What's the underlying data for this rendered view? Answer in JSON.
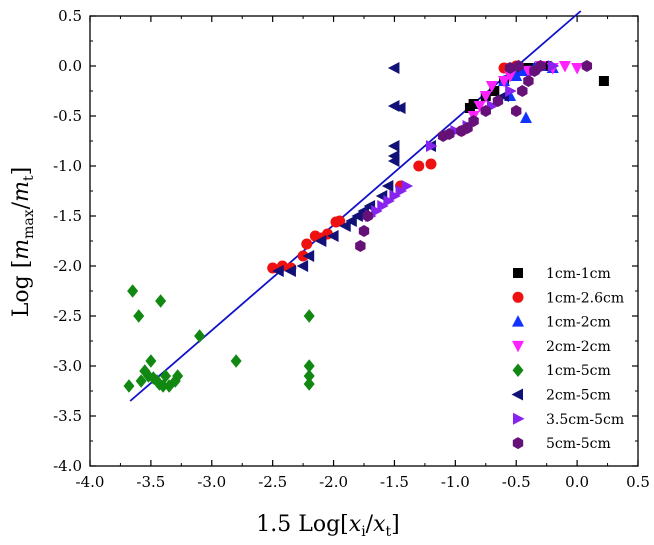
{
  "chart_data": {
    "type": "scatter",
    "title": "",
    "xlabel": {
      "prefix": "1.5 Log[",
      "num": "x",
      "num_sub": "i",
      "sep": "/",
      "den": "x",
      "den_sub": "t",
      "suffix": "]"
    },
    "ylabel": {
      "prefix": "Log [",
      "num": "m",
      "num_sub": "max",
      "sep": "/",
      "den": "m",
      "den_sub": "t",
      "suffix": "]"
    },
    "xlim": [
      -4.0,
      0.5
    ],
    "ylim": [
      -4.0,
      0.5
    ],
    "xticks": [
      "-4.0",
      "-3.5",
      "-3.0",
      "-2.5",
      "-2.0",
      "-1.5",
      "-1.0",
      "-0.5",
      "0.0",
      "0.5"
    ],
    "yticks": [
      "0.5",
      "0.0",
      "-0.5",
      "-1.0",
      "-1.5",
      "-2.0",
      "-2.5",
      "-3.0",
      "-3.5",
      "-4.0"
    ],
    "grid": false,
    "legend_position": "bottom-right",
    "fit_line": {
      "x": [
        -3.67,
        0.03
      ],
      "y": [
        -3.35,
        0.55
      ],
      "color": "#1111cc"
    },
    "series": [
      {
        "name": "1cm-1cm",
        "marker": "square",
        "color": "#000000",
        "points": [
          [
            -0.88,
            -0.42
          ],
          [
            -0.85,
            -0.38
          ],
          [
            -0.75,
            -0.3
          ],
          [
            -0.68,
            -0.25
          ],
          [
            -0.6,
            -0.15
          ],
          [
            -0.5,
            -0.05
          ],
          [
            -0.4,
            -0.02
          ],
          [
            -0.35,
            -0.03
          ],
          [
            -0.25,
            0.0
          ],
          [
            0.22,
            -0.15
          ]
        ]
      },
      {
        "name": "1cm-2.6cm",
        "marker": "circle",
        "color": "#ee1111",
        "points": [
          [
            -2.5,
            -2.02
          ],
          [
            -2.42,
            -2.0
          ],
          [
            -2.35,
            -2.02
          ],
          [
            -2.25,
            -1.9
          ],
          [
            -2.22,
            -1.78
          ],
          [
            -2.15,
            -1.7
          ],
          [
            -2.1,
            -1.72
          ],
          [
            -2.05,
            -1.68
          ],
          [
            -1.98,
            -1.56
          ],
          [
            -1.95,
            -1.55
          ],
          [
            -1.45,
            -1.2
          ],
          [
            -1.3,
            -1.0
          ],
          [
            -1.2,
            -0.98
          ],
          [
            -0.95,
            -0.65
          ],
          [
            -0.6,
            -0.02
          ],
          [
            -0.55,
            -0.02
          ],
          [
            -0.5,
            0.0
          ]
        ]
      },
      {
        "name": "1cm-2cm",
        "marker": "triangle-up",
        "color": "#1133ff",
        "points": [
          [
            -0.55,
            -0.3
          ],
          [
            -0.6,
            -0.15
          ],
          [
            -0.5,
            -0.1
          ],
          [
            -0.45,
            -0.05
          ],
          [
            -0.42,
            -0.52
          ],
          [
            -0.35,
            -0.02
          ],
          [
            -0.3,
            0.0
          ],
          [
            -0.2,
            -0.02
          ]
        ]
      },
      {
        "name": "2cm-2cm",
        "marker": "triangle-down",
        "color": "#ff22ff",
        "points": [
          [
            -0.85,
            -0.5
          ],
          [
            -0.8,
            -0.4
          ],
          [
            -0.75,
            -0.3
          ],
          [
            -0.7,
            -0.2
          ],
          [
            -0.6,
            -0.15
          ],
          [
            -0.55,
            -0.1
          ],
          [
            -0.4,
            -0.05
          ],
          [
            -0.3,
            0.0
          ],
          [
            -0.2,
            -0.02
          ],
          [
            -0.1,
            0.0
          ],
          [
            0.0,
            -0.02
          ]
        ]
      },
      {
        "name": "1cm-5cm",
        "marker": "diamond",
        "color": "#118811",
        "points": [
          [
            -3.68,
            -3.2
          ],
          [
            -3.65,
            -2.25
          ],
          [
            -3.6,
            -2.5
          ],
          [
            -3.58,
            -3.15
          ],
          [
            -3.55,
            -3.05
          ],
          [
            -3.52,
            -3.1
          ],
          [
            -3.5,
            -2.95
          ],
          [
            -3.48,
            -3.12
          ],
          [
            -3.45,
            -3.15
          ],
          [
            -3.43,
            -3.18
          ],
          [
            -3.42,
            -2.35
          ],
          [
            -3.4,
            -3.2
          ],
          [
            -3.38,
            -3.1
          ],
          [
            -3.35,
            -3.2
          ],
          [
            -3.3,
            -3.15
          ],
          [
            -3.28,
            -3.1
          ],
          [
            -3.1,
            -2.7
          ],
          [
            -2.8,
            -2.95
          ],
          [
            -2.2,
            -2.5
          ],
          [
            -2.2,
            -3.0
          ],
          [
            -2.2,
            -3.1
          ],
          [
            -2.2,
            -3.18
          ]
        ]
      },
      {
        "name": "2cm-5cm",
        "marker": "triangle-left",
        "color": "#111177",
        "points": [
          [
            -2.45,
            -2.05
          ],
          [
            -2.35,
            -2.05
          ],
          [
            -2.25,
            -2.0
          ],
          [
            -2.2,
            -1.9
          ],
          [
            -2.1,
            -1.75
          ],
          [
            -2.0,
            -1.7
          ],
          [
            -1.9,
            -1.6
          ],
          [
            -1.85,
            -1.55
          ],
          [
            -1.8,
            -1.5
          ],
          [
            -1.75,
            -1.45
          ],
          [
            -1.7,
            -1.4
          ],
          [
            -1.6,
            -1.3
          ],
          [
            -1.55,
            -1.2
          ],
          [
            -1.5,
            -0.02
          ],
          [
            -1.5,
            -0.4
          ],
          [
            -1.5,
            -0.8
          ],
          [
            -1.5,
            -0.9
          ],
          [
            -1.5,
            -0.95
          ],
          [
            -1.45,
            -0.42
          ],
          [
            -1.2,
            -0.8
          ],
          [
            -0.6,
            -0.3
          ]
        ]
      },
      {
        "name": "3.5cm-5cm",
        "marker": "triangle-right",
        "color": "#8822ee",
        "points": [
          [
            -1.7,
            -1.5
          ],
          [
            -1.65,
            -1.45
          ],
          [
            -1.6,
            -1.4
          ],
          [
            -1.55,
            -1.35
          ],
          [
            -1.5,
            -1.3
          ],
          [
            -1.45,
            -1.25
          ],
          [
            -1.4,
            -1.2
          ],
          [
            -1.2,
            -0.8
          ],
          [
            -1.0,
            -0.65
          ],
          [
            -0.9,
            -0.6
          ],
          [
            -0.7,
            -0.4
          ],
          [
            -0.55,
            -0.25
          ],
          [
            -0.35,
            -0.05
          ],
          [
            -0.2,
            0.0
          ]
        ]
      },
      {
        "name": "5cm-5cm",
        "marker": "hexagon",
        "color": "#661177",
        "points": [
          [
            -1.78,
            -1.8
          ],
          [
            -1.75,
            -1.65
          ],
          [
            -1.72,
            -1.5
          ],
          [
            -1.1,
            -0.7
          ],
          [
            -1.05,
            -0.68
          ],
          [
            -0.95,
            -0.65
          ],
          [
            -0.9,
            -0.62
          ],
          [
            -0.85,
            -0.55
          ],
          [
            -0.75,
            -0.45
          ],
          [
            -0.65,
            -0.35
          ],
          [
            -0.5,
            -0.45
          ],
          [
            -0.45,
            -0.25
          ],
          [
            -0.4,
            -0.15
          ],
          [
            -0.35,
            -0.05
          ],
          [
            -0.3,
            0.0
          ],
          [
            -0.55,
            -0.02
          ],
          [
            -0.48,
            0.0
          ],
          [
            0.08,
            0.0
          ]
        ]
      }
    ]
  }
}
